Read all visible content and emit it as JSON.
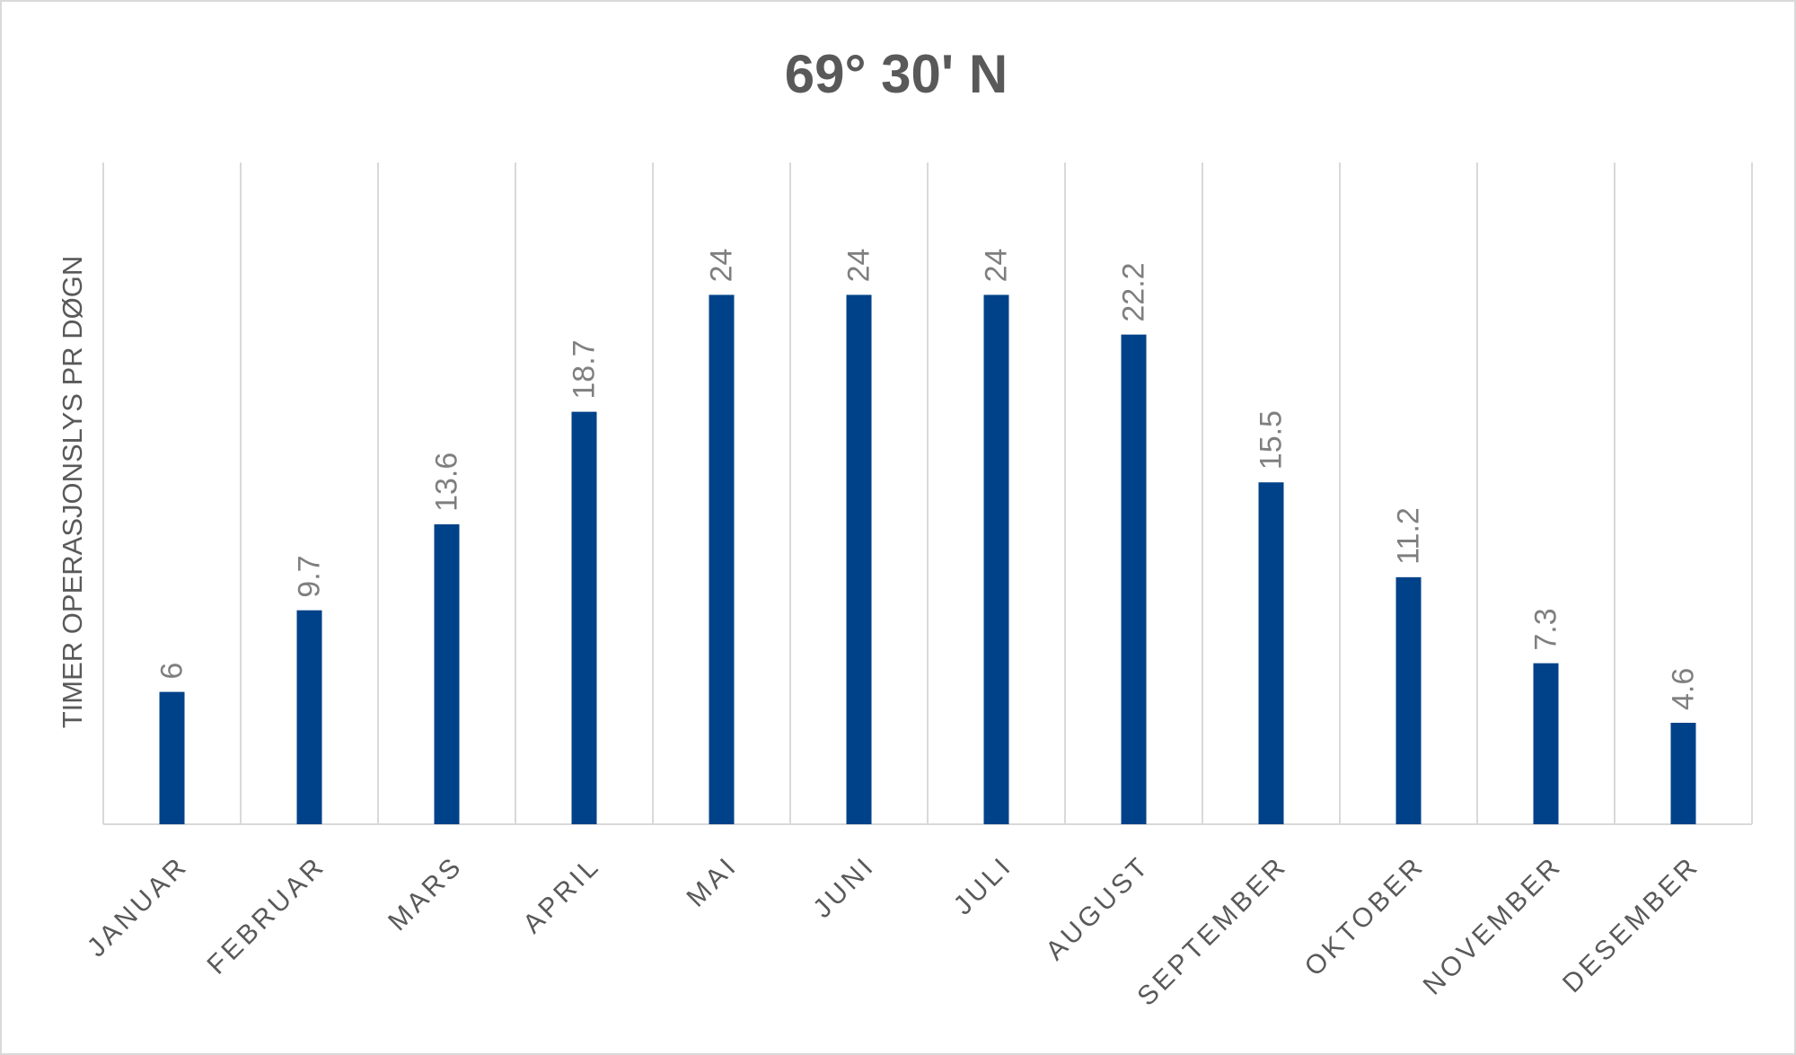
{
  "chart_data": {
    "type": "bar",
    "title": "69° 30' N",
    "y_label": "TIMER OPERASJONSLYS PR DØGN",
    "categories": [
      "JANUAR",
      "FEBRUAR",
      "MARS",
      "APRIL",
      "MAI",
      "JUNI",
      "JULI",
      "AUGUST",
      "SEPTEMBER",
      "OKTOBER",
      "NOVEMBER",
      "DESEMBER"
    ],
    "values": [
      6,
      9.7,
      13.6,
      18.7,
      24,
      24,
      24,
      22.2,
      15.5,
      11.2,
      7.3,
      4.6
    ],
    "color": "#004289",
    "ylim": [
      0,
      30
    ]
  }
}
